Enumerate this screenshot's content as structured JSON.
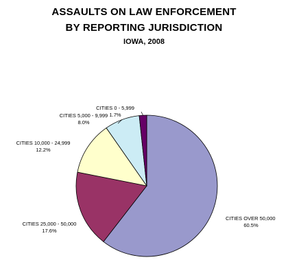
{
  "chart_data": {
    "type": "pie",
    "title_lines": [
      "ASSAULTS ON LAW ENFORCEMENT",
      "BY REPORTING JURISDICTION"
    ],
    "subtitle": "IOWA, 2008",
    "slices": [
      {
        "label": "CITIES OVER 50,000",
        "value": 60.5,
        "value_label": "60.5%",
        "color": "#9999cc"
      },
      {
        "label": "CITIES 25,000 - 50,000",
        "value": 17.6,
        "value_label": "17.6%",
        "color": "#993366"
      },
      {
        "label": "CITIES 10,000 - 24,999",
        "value": 12.2,
        "value_label": "12.2%",
        "color": "#ffffcc"
      },
      {
        "label": "CITIES 5,000 - 9,999",
        "value": 8.0,
        "value_label": "8.0%",
        "color": "#ccecf5"
      },
      {
        "label": "CITIES 0 - 5,999",
        "value": 1.7,
        "value_label": "1.7%",
        "color": "#660066"
      }
    ],
    "start_at": "top",
    "direction": "clockwise",
    "legend": "none",
    "leader_lines": true
  }
}
